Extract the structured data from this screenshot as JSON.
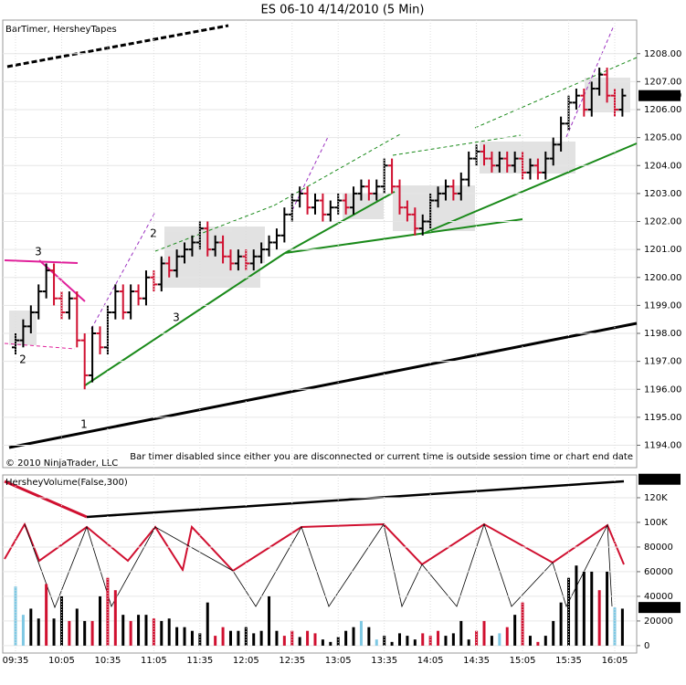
{
  "title": "ES 06-10  4/14/2010 (5 Min)",
  "chart_data": [
    {
      "type": "ohlc",
      "label": "BarTimer, HersheyTapes",
      "copyright": "© 2010 NinjaTrader, LLC",
      "message": "Bar timer disabled since either you are disconnected or current time is outside session time or chart end date",
      "annotations": [
        "3",
        "2",
        "2",
        "3",
        "1"
      ],
      "up_color": "#000000",
      "down_color": "#d01030",
      "grid": true,
      "ylim": [
        1193.2,
        1209.2
      ],
      "yticks": [
        {
          "value": 1194,
          "label": "1194.00"
        },
        {
          "value": 1195,
          "label": "1195.00"
        },
        {
          "value": 1196,
          "label": "1196.00"
        },
        {
          "value": 1197,
          "label": "1197.00"
        },
        {
          "value": 1198,
          "label": "1198.00"
        },
        {
          "value": 1199,
          "label": "1199.00"
        },
        {
          "value": 1200,
          "label": "1200.00"
        },
        {
          "value": 1201,
          "label": "1201.00"
        },
        {
          "value": 1202,
          "label": "1202.00"
        },
        {
          "value": 1203,
          "label": "1203.00"
        },
        {
          "value": 1204,
          "label": "1204.00"
        },
        {
          "value": 1205,
          "label": "1205.00"
        },
        {
          "value": 1206,
          "label": "1206.00"
        },
        {
          "value": 1207,
          "label": "1207.00"
        },
        {
          "value": 1208,
          "label": "1208.00"
        }
      ],
      "marker": {
        "value": 1206.5,
        "label": "1206.50"
      },
      "open": [
        1197.5,
        1197.75,
        1198.25,
        1198.75,
        1199.5,
        1200.25,
        1199.25,
        1198.75,
        1199.25,
        1197.75,
        1196.5,
        1198.0,
        1197.5,
        1198.75,
        1199.5,
        1198.75,
        1199.5,
        1199.25,
        1200.0,
        1199.75,
        1200.5,
        1200.25,
        1200.75,
        1201.0,
        1201.25,
        1201.75,
        1201.0,
        1201.25,
        1200.75,
        1200.5,
        1200.75,
        1200.5,
        1200.75,
        1201.0,
        1201.25,
        1201.5,
        1202.25,
        1202.75,
        1203.0,
        1202.5,
        1202.75,
        1202.25,
        1202.5,
        1202.75,
        1202.5,
        1203.0,
        1203.25,
        1203.0,
        1203.25,
        1204.0,
        1203.25,
        1202.5,
        1202.25,
        1201.75,
        1202.0,
        1202.75,
        1203.0,
        1203.25,
        1203.0,
        1203.5,
        1204.25,
        1204.5,
        1204.25,
        1204.0,
        1204.25,
        1204.0,
        1204.25,
        1203.75,
        1204.0,
        1203.75,
        1204.25,
        1204.75,
        1205.5,
        1206.25,
        1206.5,
        1206.0,
        1206.75,
        1207.25,
        1206.5,
        1206.0
      ],
      "high": [
        1198.0,
        1198.5,
        1199.0,
        1199.75,
        1200.5,
        1200.5,
        1199.5,
        1199.5,
        1199.5,
        1198.0,
        1198.25,
        1198.25,
        1199.0,
        1199.75,
        1199.75,
        1199.75,
        1199.75,
        1200.25,
        1200.25,
        1200.75,
        1200.75,
        1201.0,
        1201.25,
        1201.5,
        1202.0,
        1202.0,
        1201.5,
        1201.5,
        1201.0,
        1201.0,
        1201.0,
        1201.0,
        1201.25,
        1201.5,
        1201.75,
        1202.5,
        1203.0,
        1203.25,
        1203.25,
        1203.0,
        1203.0,
        1202.75,
        1203.0,
        1203.0,
        1203.25,
        1203.5,
        1203.5,
        1203.5,
        1204.25,
        1204.25,
        1203.5,
        1202.75,
        1202.5,
        1202.25,
        1203.0,
        1203.25,
        1203.5,
        1203.5,
        1203.75,
        1204.5,
        1204.75,
        1204.75,
        1204.5,
        1204.5,
        1204.5,
        1204.5,
        1204.5,
        1204.25,
        1204.25,
        1204.5,
        1205.0,
        1205.75,
        1206.5,
        1206.75,
        1206.75,
        1207.0,
        1207.5,
        1207.5,
        1206.75,
        1206.75
      ],
      "low": [
        1197.25,
        1197.5,
        1198.0,
        1198.5,
        1199.25,
        1199.0,
        1198.5,
        1198.5,
        1197.5,
        1196.0,
        1196.25,
        1197.25,
        1197.25,
        1198.5,
        1198.5,
        1198.5,
        1199.0,
        1199.0,
        1199.5,
        1199.5,
        1200.0,
        1200.0,
        1200.5,
        1200.75,
        1201.0,
        1200.75,
        1200.75,
        1200.5,
        1200.25,
        1200.25,
        1200.25,
        1200.25,
        1200.5,
        1200.75,
        1201.0,
        1201.25,
        1202.0,
        1202.5,
        1202.25,
        1202.25,
        1202.0,
        1202.0,
        1202.25,
        1202.25,
        1202.25,
        1202.75,
        1202.75,
        1202.75,
        1203.0,
        1203.0,
        1202.25,
        1202.0,
        1201.5,
        1201.5,
        1201.75,
        1202.5,
        1202.75,
        1202.75,
        1202.75,
        1203.25,
        1204.0,
        1204.0,
        1203.75,
        1203.75,
        1203.75,
        1203.75,
        1203.5,
        1203.5,
        1203.5,
        1203.5,
        1204.0,
        1204.5,
        1205.25,
        1206.0,
        1205.75,
        1205.75,
        1206.5,
        1206.25,
        1205.75,
        1205.75
      ],
      "close": [
        1197.75,
        1198.25,
        1198.75,
        1199.5,
        1200.25,
        1199.25,
        1198.75,
        1199.25,
        1197.75,
        1196.5,
        1198.0,
        1197.5,
        1198.75,
        1199.5,
        1198.75,
        1199.5,
        1199.25,
        1200.0,
        1199.75,
        1200.5,
        1200.25,
        1200.75,
        1201.0,
        1201.25,
        1201.75,
        1201.0,
        1201.25,
        1200.75,
        1200.5,
        1200.75,
        1200.5,
        1200.75,
        1201.0,
        1201.25,
        1201.5,
        1202.25,
        1202.75,
        1203.0,
        1202.5,
        1202.75,
        1202.25,
        1202.5,
        1202.75,
        1202.5,
        1203.0,
        1203.25,
        1203.0,
        1203.25,
        1204.0,
        1203.25,
        1202.5,
        1202.25,
        1201.75,
        1202.0,
        1202.75,
        1203.0,
        1203.25,
        1203.0,
        1203.5,
        1204.25,
        1204.5,
        1204.25,
        1204.0,
        1204.25,
        1204.0,
        1204.25,
        1203.75,
        1204.0,
        1203.75,
        1204.25,
        1204.75,
        1205.5,
        1206.25,
        1206.5,
        1206.0,
        1206.75,
        1207.25,
        1206.5,
        1206.0,
        1206.5
      ]
    },
    {
      "type": "bar",
      "label": "HersheyVolume(False,300)",
      "grid": true,
      "ylim": [
        -6000,
        138500
      ],
      "yticks": [
        0,
        20000,
        40000,
        60000,
        80000,
        {
          "value": 100000,
          "label": "100K"
        },
        {
          "value": 120000,
          "label": "120K"
        }
      ],
      "line_marker": {
        "value": 135000,
        "label": "135K"
      },
      "marker": 30942,
      "categories": [
        "09:35",
        null,
        null,
        null,
        null,
        null,
        "10:05",
        null,
        null,
        null,
        null,
        null,
        "10:35",
        null,
        null,
        null,
        null,
        null,
        "11:05",
        null,
        null,
        null,
        null,
        null,
        "11:35",
        null,
        null,
        null,
        null,
        null,
        "12:05",
        null,
        null,
        null,
        null,
        null,
        "12:35",
        null,
        null,
        null,
        null,
        null,
        "13:05",
        null,
        null,
        null,
        null,
        null,
        "13:35",
        null,
        null,
        null,
        null,
        null,
        "14:05",
        null,
        null,
        null,
        null,
        null,
        "14:35",
        null,
        null,
        null,
        null,
        null,
        "15:05",
        null,
        null,
        null,
        null,
        null,
        "15:35",
        null,
        null,
        null,
        null,
        null,
        "16:05",
        null
      ],
      "values": [
        48000,
        25000,
        30000,
        22000,
        50000,
        22000,
        40000,
        20000,
        30000,
        20000,
        20000,
        40000,
        55000,
        45000,
        25000,
        20000,
        25000,
        25000,
        22000,
        20000,
        22000,
        15000,
        15000,
        12000,
        10000,
        35000,
        8000,
        15000,
        12000,
        12000,
        15000,
        10000,
        12000,
        40000,
        12000,
        8000,
        12000,
        7000,
        12000,
        10000,
        5000,
        3000,
        7000,
        12000,
        15000,
        20000,
        15000,
        5000,
        8000,
        3000,
        10000,
        8000,
        5000,
        10000,
        8000,
        12000,
        8000,
        10000,
        20000,
        5000,
        12000,
        20000,
        8000,
        10000,
        15000,
        25000,
        35000,
        8000,
        3000,
        8000,
        20000,
        35000,
        55000,
        65000,
        60000,
        60000,
        45000,
        60000,
        30942,
        30000
      ],
      "colors": [
        "#7ec8e3",
        "#7ec8e3",
        "#000000",
        "#000000",
        "#d01030",
        "#000000",
        "#000000",
        "#d01030",
        "#000000",
        "#000000",
        "#d01030",
        "#000000",
        "#d01030",
        "#d01030",
        "#000000",
        "#d01030",
        "#000000",
        "#000000",
        "#d01030",
        "#000000",
        "#000000",
        "#000000",
        "#000000",
        "#000000",
        "#000000",
        "#000000",
        "#d01030",
        "#d01030",
        "#000000",
        "#000000",
        "#000000",
        "#000000",
        "#000000",
        "#000000",
        "#000000",
        "#d01030",
        "#d01030",
        "#000000",
        "#d01030",
        "#d01030",
        "#000000",
        "#000000",
        "#000000",
        "#000000",
        "#000000",
        "#7ec8e3",
        "#000000",
        "#7ec8e3",
        "#000000",
        "#000000",
        "#000000",
        "#000000",
        "#000000",
        "#d01030",
        "#d01030",
        "#d01030",
        "#000000",
        "#000000",
        "#000000",
        "#000000",
        "#d01030",
        "#d01030",
        "#000000",
        "#7ec8e3",
        "#d01030",
        "#000000",
        "#d01030",
        "#000000",
        "#d01030",
        "#000000",
        "#000000",
        "#000000",
        "#000000",
        "#000000",
        "#000000",
        "#000000",
        "#d01030",
        "#000000",
        "#7ec8e3",
        "#000000"
      ]
    }
  ]
}
